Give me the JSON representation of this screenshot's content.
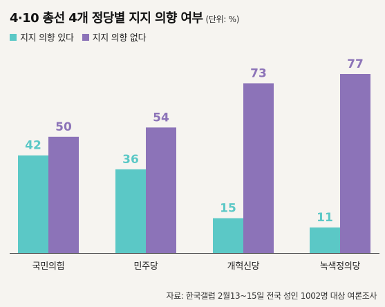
{
  "header": {
    "title": "4·10 총선 4개 정당별 지지 의향 여부",
    "unit": "(단위: %)"
  },
  "source": "자료: 한국갤럽 2월13~15일 전국 성인 1002명 대상 여론조사",
  "chart_data": {
    "type": "bar",
    "categories": [
      "국민의힘",
      "민주당",
      "개혁신당",
      "녹색정의당"
    ],
    "series": [
      {
        "name": "지지 의향 있다",
        "values": [
          42,
          36,
          15,
          11
        ],
        "color": "#5bc8c6"
      },
      {
        "name": "지지 의향 없다",
        "values": [
          50,
          54,
          73,
          77
        ],
        "color": "#8c73b8"
      }
    ],
    "ylim": [
      0,
      80
    ],
    "grid": false,
    "legend": "top-left",
    "title": "4·10 총선 4개 정당별 지지 의향 여부"
  }
}
